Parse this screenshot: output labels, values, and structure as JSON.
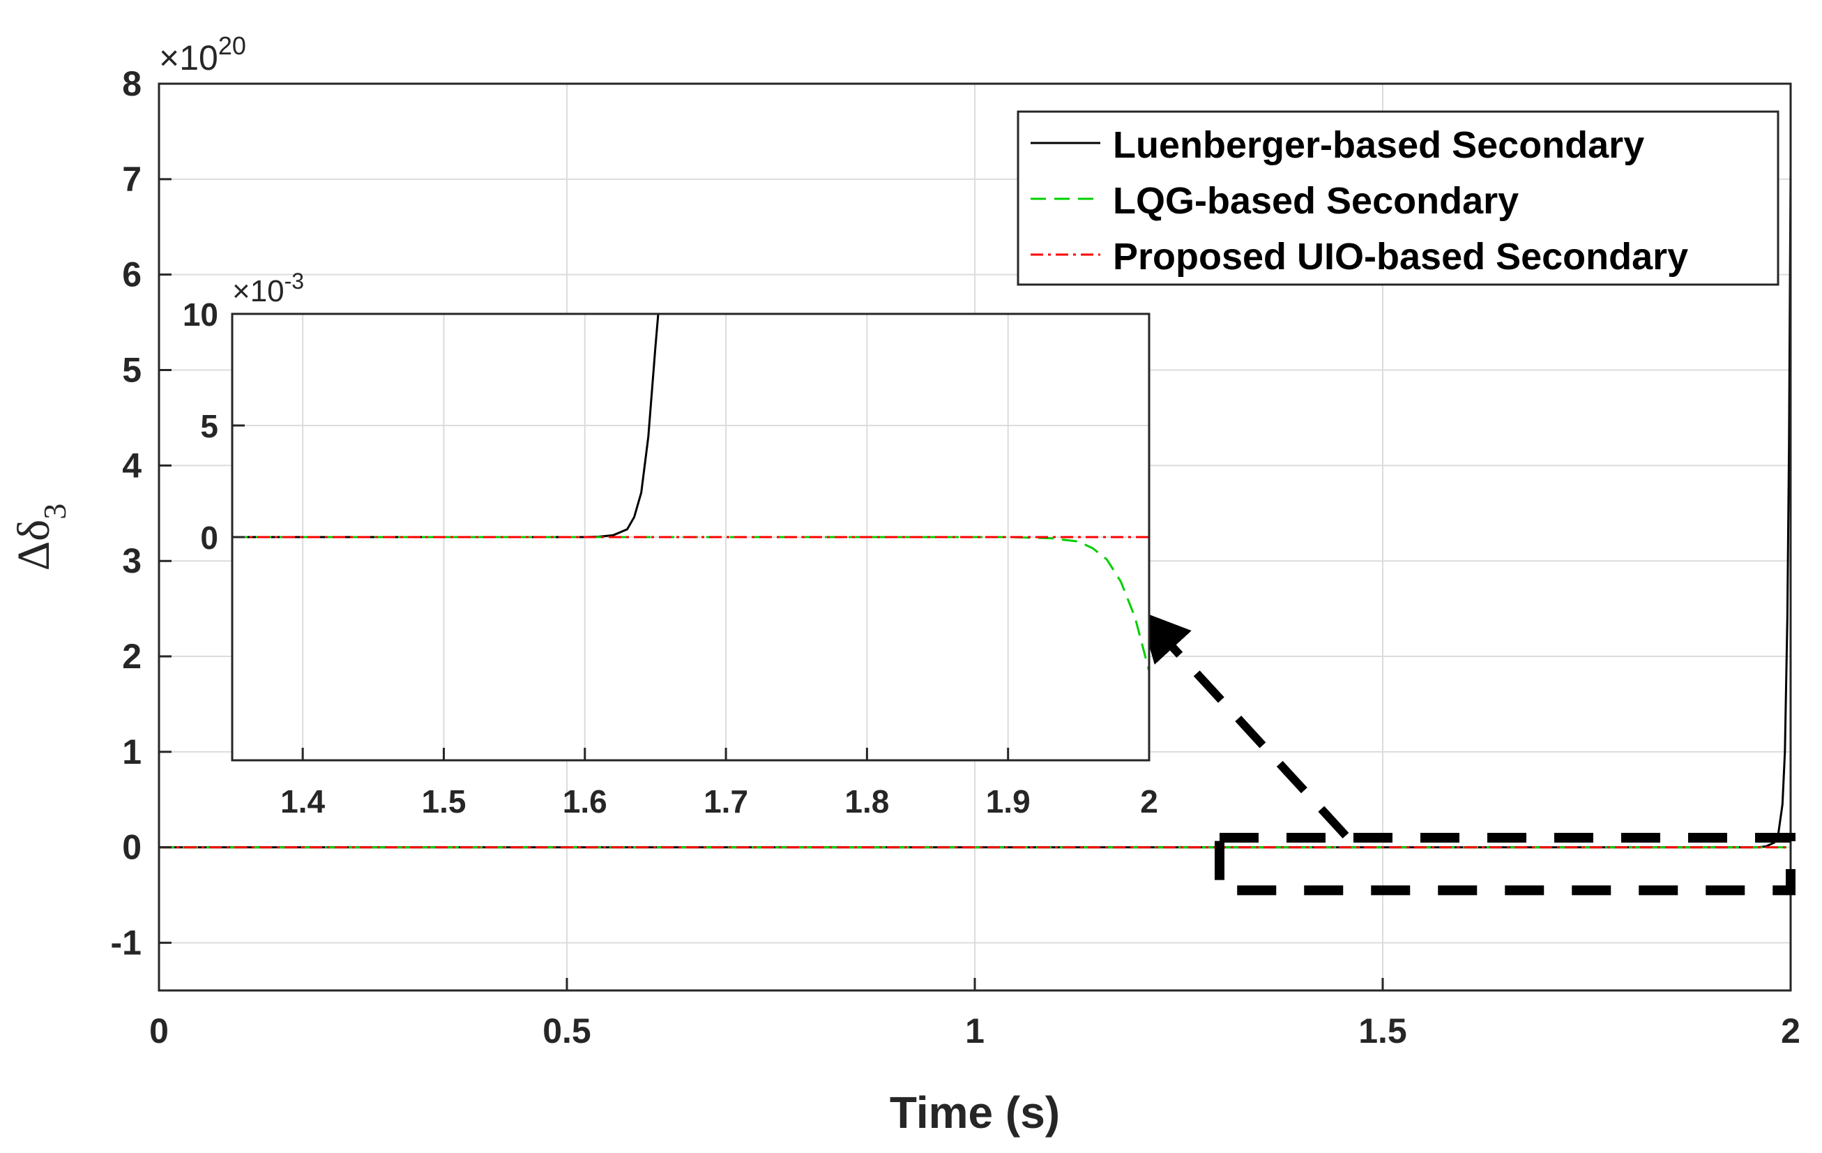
{
  "chart_data": [
    {
      "name": "main",
      "type": "line",
      "xlabel": "Time (s)",
      "ylabel_symbol": "Δδ",
      "ylabel_subscript": "3",
      "exponent_prefix": "×10",
      "exponent_power": "20",
      "xlim": [
        0,
        2
      ],
      "ylim": [
        -1.5,
        8
      ],
      "x_ticks": [
        0,
        0.5,
        1,
        1.5,
        2
      ],
      "x_tick_labels": [
        "0",
        "0.5",
        "1",
        "1.5",
        "2"
      ],
      "y_ticks": [
        -1,
        0,
        1,
        2,
        3,
        4,
        5,
        6,
        7,
        8
      ],
      "y_tick_labels": [
        "-1",
        "0",
        "1",
        "2",
        "3",
        "4",
        "5",
        "6",
        "7",
        "8"
      ],
      "grid": true,
      "legend_position": "top-right",
      "series": [
        {
          "name": "Luenberger-based Secondary",
          "color": "#000000",
          "dash": "solid",
          "x": [
            0,
            1.5,
            1.96,
            1.97,
            1.98,
            1.985,
            1.99,
            1.993,
            1.996,
            1.998,
            2.0
          ],
          "y": [
            0,
            0,
            0,
            0.01,
            0.05,
            0.15,
            0.45,
            1.0,
            2.4,
            4.2,
            7.1
          ]
        },
        {
          "name": "LQG-based Secondary",
          "color": "#00d000",
          "dash": "dashed",
          "x": [
            0,
            2
          ],
          "y": [
            0,
            0
          ]
        },
        {
          "name": "Proposed UIO-based Secondary",
          "color": "#ff0000",
          "dash": "dashdot",
          "x": [
            0,
            2
          ],
          "y": [
            0,
            0
          ]
        }
      ],
      "zoom_region": {
        "x": [
          1.3,
          2.0
        ],
        "y": [
          -0.45,
          0.1
        ]
      }
    },
    {
      "name": "inset",
      "type": "line",
      "exponent_prefix": "×10",
      "exponent_power": "-3",
      "xlim": [
        1.35,
        2.0
      ],
      "ylim": [
        -10,
        10
      ],
      "x_ticks": [
        1.4,
        1.5,
        1.6,
        1.7,
        1.8,
        1.9,
        2.0
      ],
      "x_tick_labels": [
        "1.4",
        "1.5",
        "1.6",
        "1.7",
        "1.8",
        "1.9",
        "2"
      ],
      "y_ticks": [
        0,
        5,
        10
      ],
      "y_tick_labels": [
        "0",
        "5",
        "10"
      ],
      "grid": true,
      "series": [
        {
          "name": "Luenberger-based Secondary",
          "color": "#000000",
          "dash": "solid",
          "x": [
            1.35,
            1.6,
            1.61,
            1.62,
            1.63,
            1.635,
            1.64,
            1.645,
            1.65,
            1.652
          ],
          "y": [
            0,
            0,
            0.02,
            0.08,
            0.35,
            0.9,
            2.0,
            4.5,
            8.5,
            10
          ]
        },
        {
          "name": "LQG-based Secondary",
          "color": "#00d000",
          "dash": "dashed",
          "x": [
            1.35,
            1.9,
            1.93,
            1.95,
            1.96,
            1.97,
            1.98,
            1.99,
            2.0
          ],
          "y": [
            0,
            0,
            -0.05,
            -0.2,
            -0.5,
            -1.0,
            -2.0,
            -3.6,
            -6.0
          ]
        },
        {
          "name": "Proposed UIO-based Secondary",
          "color": "#ff0000",
          "dash": "dashdot",
          "x": [
            1.35,
            2.0
          ],
          "y": [
            0,
            0
          ]
        }
      ]
    }
  ]
}
